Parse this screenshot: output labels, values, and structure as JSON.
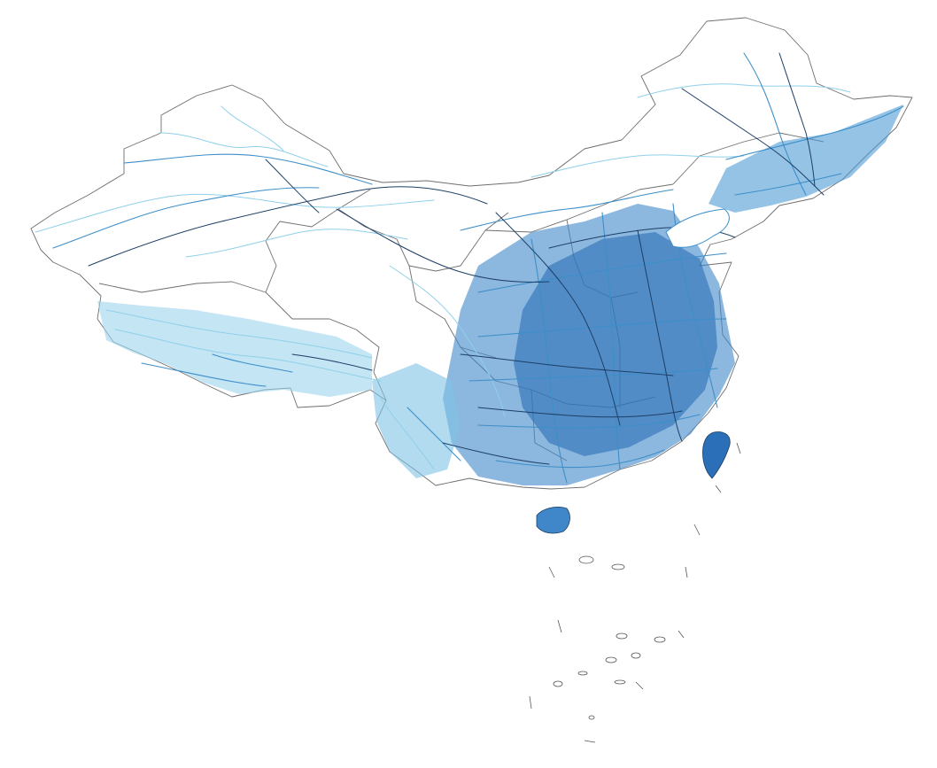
{
  "map": {
    "kind": "road-network",
    "region": "China",
    "labels": [],
    "palette": {
      "background": "#ffffff",
      "boundary": "#6e6e6e",
      "road_light": "#8fd0ea",
      "road_mid": "#3d8fc9",
      "road_dark": "#1d3f66",
      "dense_fill": "#2a6fb7"
    },
    "layers": [
      "provincial-boundaries",
      "road-network",
      "south-sea-islands"
    ]
  }
}
